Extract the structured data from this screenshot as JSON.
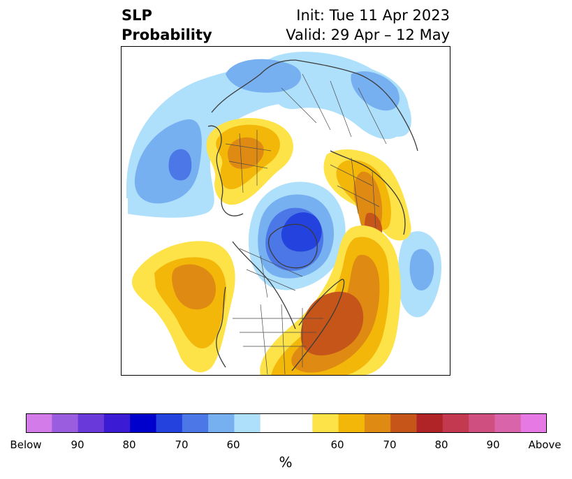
{
  "title": {
    "left_line1": "SLP",
    "left_line2": "Probability",
    "right_line1": "Init: Tue 11 Apr 2023",
    "right_line2": "Valid: 29 Apr – 12 May"
  },
  "colorbar": {
    "unit": "%",
    "tick_labels": [
      "Below",
      "90",
      "80",
      "70",
      "60",
      "60",
      "70",
      "80",
      "90",
      "Above"
    ],
    "colors": [
      "#d37be8",
      "#9b5ddf",
      "#6a39da",
      "#3b1bd3",
      "#0000cc",
      "#2442dd",
      "#4c77e6",
      "#76b0f1",
      "#aee0fb",
      "#ffffff",
      "#fee348",
      "#f3b70a",
      "#df8a13",
      "#c65519",
      "#b02427",
      "#c23950",
      "#cf4f80",
      "#d964a9",
      "#e679e3"
    ]
  },
  "map": {
    "projection": "north polar stereographic",
    "variable": "sea level pressure tercile probability",
    "anomalies": [
      {
        "kind": "below",
        "region": "arctic",
        "peak_percent": 80
      },
      {
        "kind": "below",
        "region": "north-pacific",
        "peak_percent": 70
      },
      {
        "kind": "below",
        "region": "siberia",
        "peak_percent": 60
      },
      {
        "kind": "below",
        "region": "central-pacific",
        "peak_percent": 60
      },
      {
        "kind": "above",
        "region": "scandinavia-baltic",
        "peak_percent": 70
      },
      {
        "kind": "above",
        "region": "east-asia",
        "peak_percent": 60
      },
      {
        "kind": "above",
        "region": "north-atlantic",
        "peak_percent": 70
      },
      {
        "kind": "above",
        "region": "subtropical-pacific",
        "peak_percent": 70
      }
    ]
  }
}
